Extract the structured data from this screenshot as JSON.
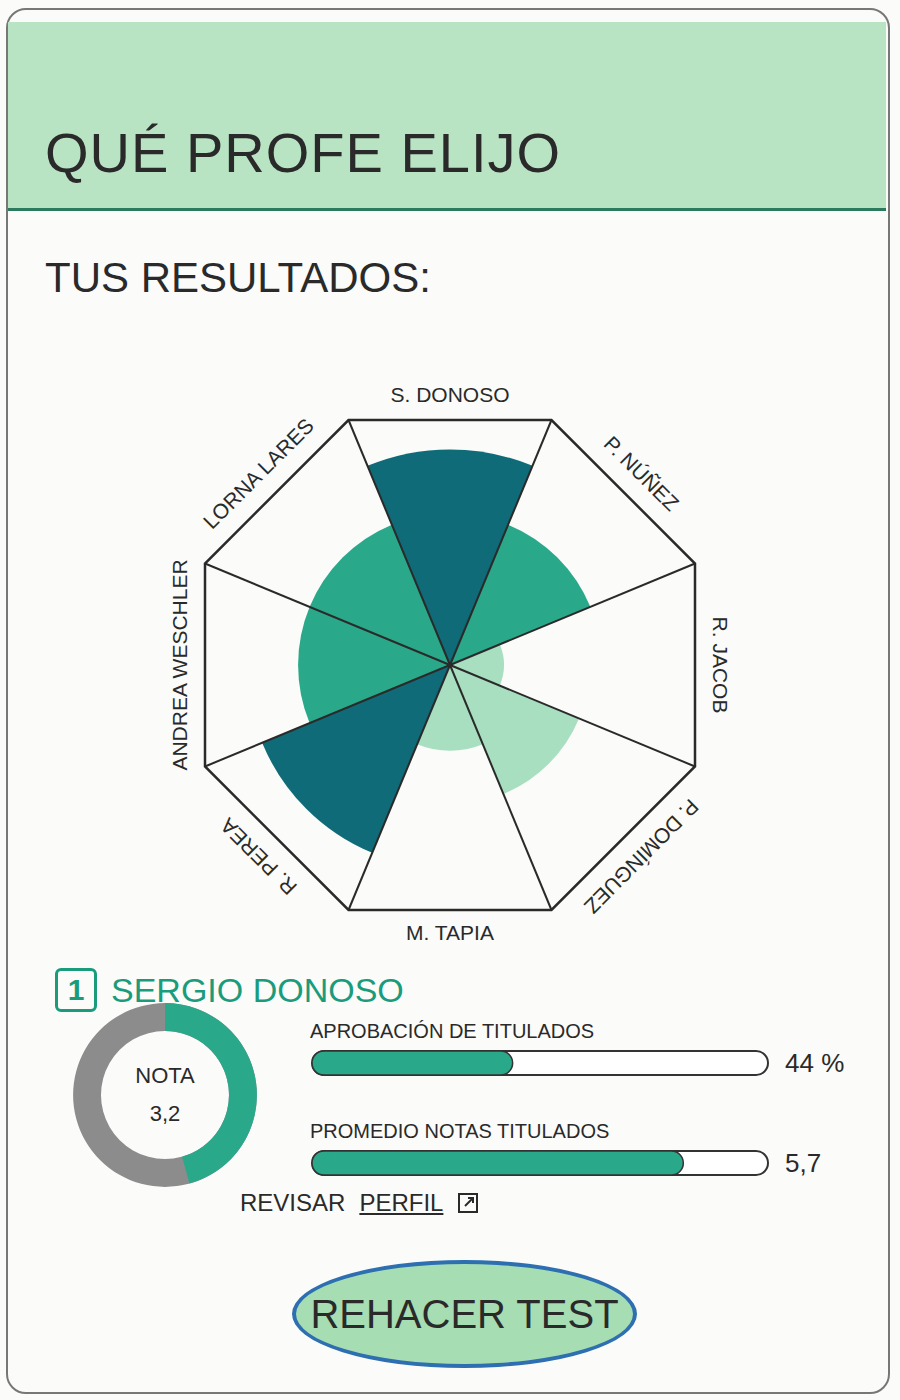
{
  "header": {
    "title": "QUÉ PROFE ELIJO"
  },
  "subtitle": "TUS RESULTADOS:",
  "chart_data": {
    "type": "rose",
    "categories": [
      "S. DONOSO",
      "P. NÚÑEZ",
      "R. JACOB",
      "P. DOMÍNGUEZ",
      "M. TAPIA",
      "R. PEREA",
      "ANDREA WESCHLER",
      "LORNA LARES"
    ],
    "values": [
      88,
      62,
      22,
      57,
      35,
      83,
      62,
      62
    ],
    "colors": [
      "#0f6b78",
      "#2aa98a",
      "#a8dfc0",
      "#a8dfc0",
      "#a8dfc0",
      "#0f6b78",
      "#2aa98a",
      "#2aa98a"
    ],
    "ylim": [
      0,
      100
    ],
    "tick_labels": false
  },
  "top_result": {
    "rank": 1,
    "name": "SERGIO DONOSO",
    "grade": {
      "label": "NOTA",
      "value": 3.2,
      "value_label": "3,2",
      "ylim": [
        0,
        7
      ],
      "color": "#2aa98a"
    },
    "metrics": [
      {
        "label": "APROBACIÓN DE TITULADOS",
        "value": 44,
        "value_label": "44 %",
        "ylim": [
          0,
          100
        ],
        "color": "#2aa98a"
      },
      {
        "label": "PROMEDIO NOTAS TITULADOS",
        "value": 5.7,
        "value_label": "5,7",
        "ylim": [
          0,
          7
        ],
        "color": "#2aa98a"
      }
    ],
    "link": {
      "text": "REVISAR",
      "link_text": "PERFIL"
    }
  },
  "button": "REHACER TEST"
}
